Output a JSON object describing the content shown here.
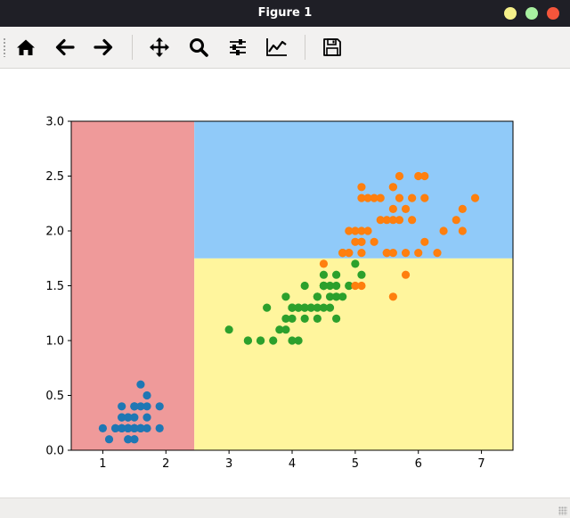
{
  "window": {
    "title": "Figure 1",
    "controls": [
      {
        "name": "minimize",
        "color": "#f5f08a"
      },
      {
        "name": "maximize",
        "color": "#a8f0a0"
      },
      {
        "name": "close",
        "color": "#f4553b"
      }
    ]
  },
  "toolbar": {
    "tools": [
      {
        "name": "home-icon"
      },
      {
        "name": "back-arrow-icon"
      },
      {
        "name": "forward-arrow-icon"
      },
      {
        "name": "pan-icon"
      },
      {
        "name": "zoom-icon"
      },
      {
        "name": "subplots-icon"
      },
      {
        "name": "edit-axis-icon"
      },
      {
        "name": "save-icon"
      }
    ]
  },
  "chart_data": {
    "type": "scatter",
    "xlim": [
      0.5,
      7.5
    ],
    "ylim": [
      0.0,
      3.0
    ],
    "x_ticks": [
      1,
      2,
      3,
      4,
      5,
      6,
      7
    ],
    "y_ticks": [
      0.0,
      0.5,
      1.0,
      1.5,
      2.0,
      2.5,
      3.0
    ],
    "x_tick_labels": [
      "1",
      "2",
      "3",
      "4",
      "5",
      "6",
      "7"
    ],
    "y_tick_labels": [
      "0.0",
      "0.5",
      "1.0",
      "1.5",
      "2.0",
      "2.5",
      "3.0"
    ],
    "grid": false,
    "regions": [
      {
        "x": [
          0.5,
          2.45
        ],
        "y": [
          0.0,
          3.0
        ],
        "color": "#ef9a9a"
      },
      {
        "x": [
          2.45,
          7.5
        ],
        "y": [
          0.0,
          1.75
        ],
        "color": "#fff59d"
      },
      {
        "x": [
          2.45,
          7.5
        ],
        "y": [
          1.75,
          3.0
        ],
        "color": "#90caf9"
      }
    ],
    "series": [
      {
        "color": "#1f77b4",
        "points": [
          [
            1.4,
            0.2
          ],
          [
            1.4,
            0.2
          ],
          [
            1.3,
            0.2
          ],
          [
            1.5,
            0.2
          ],
          [
            1.4,
            0.2
          ],
          [
            1.7,
            0.4
          ],
          [
            1.4,
            0.3
          ],
          [
            1.5,
            0.2
          ],
          [
            1.4,
            0.2
          ],
          [
            1.5,
            0.1
          ],
          [
            1.5,
            0.2
          ],
          [
            1.6,
            0.2
          ],
          [
            1.4,
            0.1
          ],
          [
            1.1,
            0.1
          ],
          [
            1.2,
            0.2
          ],
          [
            1.5,
            0.4
          ],
          [
            1.3,
            0.4
          ],
          [
            1.4,
            0.3
          ],
          [
            1.7,
            0.3
          ],
          [
            1.5,
            0.3
          ],
          [
            1.7,
            0.2
          ],
          [
            1.5,
            0.4
          ],
          [
            1.0,
            0.2
          ],
          [
            1.7,
            0.5
          ],
          [
            1.9,
            0.2
          ],
          [
            1.6,
            0.2
          ],
          [
            1.6,
            0.4
          ],
          [
            1.5,
            0.2
          ],
          [
            1.4,
            0.2
          ],
          [
            1.6,
            0.2
          ],
          [
            1.6,
            0.2
          ],
          [
            1.5,
            0.4
          ],
          [
            1.5,
            0.1
          ],
          [
            1.4,
            0.2
          ],
          [
            1.5,
            0.2
          ],
          [
            1.2,
            0.2
          ],
          [
            1.3,
            0.2
          ],
          [
            1.4,
            0.1
          ],
          [
            1.3,
            0.2
          ],
          [
            1.5,
            0.2
          ],
          [
            1.3,
            0.3
          ],
          [
            1.3,
            0.3
          ],
          [
            1.3,
            0.2
          ],
          [
            1.6,
            0.6
          ],
          [
            1.9,
            0.4
          ],
          [
            1.4,
            0.3
          ],
          [
            1.6,
            0.2
          ],
          [
            1.4,
            0.2
          ],
          [
            1.5,
            0.2
          ],
          [
            1.4,
            0.2
          ]
        ]
      },
      {
        "color": "#2ca02c",
        "points": [
          [
            4.7,
            1.4
          ],
          [
            4.5,
            1.5
          ],
          [
            4.9,
            1.5
          ],
          [
            4.0,
            1.3
          ],
          [
            4.6,
            1.5
          ],
          [
            4.5,
            1.3
          ],
          [
            4.7,
            1.6
          ],
          [
            3.3,
            1.0
          ],
          [
            4.6,
            1.3
          ],
          [
            3.9,
            1.4
          ],
          [
            3.5,
            1.0
          ],
          [
            4.2,
            1.5
          ],
          [
            4.0,
            1.0
          ],
          [
            4.7,
            1.4
          ],
          [
            3.6,
            1.3
          ],
          [
            4.4,
            1.4
          ],
          [
            4.5,
            1.5
          ],
          [
            4.1,
            1.0
          ],
          [
            4.5,
            1.5
          ],
          [
            3.9,
            1.1
          ],
          [
            4.8,
            1.8
          ],
          [
            4.0,
            1.3
          ],
          [
            4.9,
            1.5
          ],
          [
            4.7,
            1.2
          ],
          [
            4.3,
            1.3
          ],
          [
            4.4,
            1.4
          ],
          [
            4.8,
            1.4
          ],
          [
            5.0,
            1.7
          ],
          [
            4.5,
            1.5
          ],
          [
            3.5,
            1.0
          ],
          [
            3.8,
            1.1
          ],
          [
            3.7,
            1.0
          ],
          [
            3.9,
            1.2
          ],
          [
            5.1,
            1.6
          ],
          [
            4.5,
            1.5
          ],
          [
            4.5,
            1.6
          ],
          [
            4.7,
            1.5
          ],
          [
            4.4,
            1.3
          ],
          [
            4.1,
            1.3
          ],
          [
            4.0,
            1.3
          ],
          [
            4.4,
            1.2
          ],
          [
            4.6,
            1.4
          ],
          [
            4.0,
            1.2
          ],
          [
            3.3,
            1.0
          ],
          [
            4.2,
            1.3
          ],
          [
            4.2,
            1.2
          ],
          [
            4.2,
            1.3
          ],
          [
            4.3,
            1.3
          ],
          [
            3.0,
            1.1
          ],
          [
            4.1,
            1.3
          ]
        ]
      },
      {
        "color": "#ff7f0e",
        "points": [
          [
            6.0,
            2.5
          ],
          [
            5.1,
            1.9
          ],
          [
            5.9,
            2.1
          ],
          [
            5.6,
            1.8
          ],
          [
            5.8,
            2.2
          ],
          [
            6.6,
            2.1
          ],
          [
            4.5,
            1.7
          ],
          [
            6.3,
            1.8
          ],
          [
            5.8,
            1.8
          ],
          [
            6.1,
            2.5
          ],
          [
            5.1,
            2.0
          ],
          [
            5.3,
            1.9
          ],
          [
            5.5,
            2.1
          ],
          [
            5.0,
            2.0
          ],
          [
            5.1,
            2.4
          ],
          [
            5.3,
            2.3
          ],
          [
            5.5,
            1.8
          ],
          [
            6.7,
            2.2
          ],
          [
            6.9,
            2.3
          ],
          [
            5.0,
            1.5
          ],
          [
            5.7,
            2.3
          ],
          [
            4.9,
            2.0
          ],
          [
            6.7,
            2.0
          ],
          [
            4.9,
            1.8
          ],
          [
            5.7,
            2.1
          ],
          [
            6.0,
            1.8
          ],
          [
            4.8,
            1.8
          ],
          [
            4.9,
            1.8
          ],
          [
            5.6,
            2.1
          ],
          [
            5.8,
            1.6
          ],
          [
            6.1,
            1.9
          ],
          [
            6.4,
            2.0
          ],
          [
            5.6,
            2.2
          ],
          [
            5.1,
            1.5
          ],
          [
            5.6,
            1.4
          ],
          [
            6.1,
            2.3
          ],
          [
            5.6,
            2.4
          ],
          [
            5.5,
            1.8
          ],
          [
            4.8,
            1.8
          ],
          [
            5.4,
            2.1
          ],
          [
            5.6,
            2.4
          ],
          [
            5.1,
            2.3
          ],
          [
            5.1,
            1.9
          ],
          [
            5.9,
            2.3
          ],
          [
            5.7,
            2.5
          ],
          [
            5.2,
            2.3
          ],
          [
            5.0,
            1.9
          ],
          [
            5.2,
            2.0
          ],
          [
            5.4,
            2.3
          ],
          [
            5.1,
            1.8
          ]
        ]
      }
    ]
  }
}
